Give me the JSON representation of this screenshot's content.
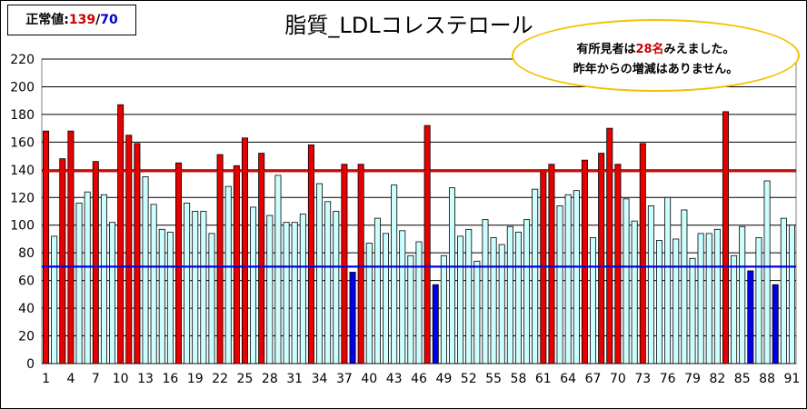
{
  "normal_value": {
    "label": "正常値:",
    "upper": "139",
    "separator": "/",
    "lower": "70"
  },
  "note": {
    "line1_prefix": "有所見者は",
    "count": "28名",
    "line1_suffix": "みえました。",
    "line2": "昨年からの増減はありません。"
  },
  "colors": {
    "normal": "#ccffff",
    "high": "#e60000",
    "low": "#0000e6",
    "upper_line": "#e00000",
    "lower_line": "#0000e6"
  },
  "chart_data": {
    "type": "bar",
    "title": "脂質_LDLコレステロール",
    "ylim": [
      0,
      220
    ],
    "yticks": [
      "0",
      "20",
      "40",
      "60",
      "80",
      "100",
      "120",
      "140",
      "160",
      "180",
      "200",
      "220"
    ],
    "xtick_labels": [
      "1",
      "4",
      "7",
      "10",
      "13",
      "16",
      "19",
      "22",
      "25",
      "28",
      "31",
      "34",
      "37",
      "40",
      "43",
      "46",
      "49",
      "52",
      "55",
      "58",
      "61",
      "64",
      "67",
      "70",
      "73",
      "76",
      "79",
      "82",
      "85",
      "88",
      "91"
    ],
    "reference_lines": [
      139,
      70
    ],
    "grid": true,
    "x": [
      1,
      2,
      3,
      4,
      5,
      6,
      7,
      8,
      9,
      10,
      11,
      12,
      13,
      14,
      15,
      16,
      17,
      18,
      19,
      20,
      21,
      22,
      23,
      24,
      25,
      26,
      27,
      28,
      29,
      30,
      31,
      32,
      33,
      34,
      35,
      36,
      37,
      38,
      39,
      40,
      41,
      42,
      43,
      44,
      45,
      46,
      47,
      48,
      49,
      50,
      51,
      52,
      53,
      54,
      55,
      56,
      57,
      58,
      59,
      60,
      61,
      62,
      63,
      64,
      65,
      66,
      67,
      68,
      69,
      70,
      71,
      72,
      73,
      74,
      75,
      76,
      77,
      78,
      79,
      80,
      81,
      82,
      83,
      84,
      85,
      86,
      87,
      88,
      89,
      90,
      91
    ],
    "values": [
      168,
      92,
      148,
      168,
      116,
      124,
      146,
      122,
      102,
      187,
      165,
      159,
      135,
      115,
      97,
      95,
      145,
      116,
      110,
      110,
      94,
      151,
      128,
      143,
      163,
      113,
      152,
      107,
      136,
      102,
      102,
      108,
      158,
      130,
      117,
      110,
      144,
      66,
      144,
      87,
      105,
      94,
      129,
      96,
      78,
      88,
      172,
      57,
      78,
      127,
      92,
      97,
      74,
      104,
      91,
      86,
      99,
      95,
      104,
      126,
      140,
      144,
      114,
      122,
      125,
      147,
      91,
      152,
      170,
      144,
      119,
      103,
      159,
      114,
      89,
      120,
      90,
      111,
      76,
      94,
      94,
      97,
      182,
      78,
      99,
      67,
      91,
      132,
      57,
      105,
      100
    ]
  }
}
